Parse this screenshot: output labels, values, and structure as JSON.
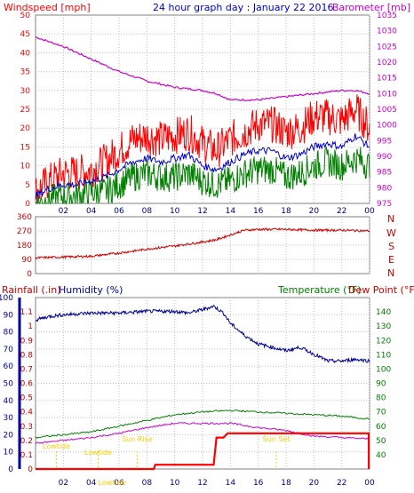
{
  "header": {
    "left_label": "Windspeed [mph]",
    "title": "24 hour graph day : January 22 2016",
    "right_label": "Barometer [mb]"
  },
  "panel2": {
    "direction_labels": [
      "N",
      "W",
      "S",
      "E",
      "N"
    ]
  },
  "panel3": {
    "rain_label": "Rainfall (.in)",
    "humidity_label": "Humidity (%)",
    "temp_label": "Temperature (°F)",
    "dew_label": "Dew Point (°F)"
  },
  "colors": {
    "wind": "#ff0000",
    "baro": "#cc00cc",
    "gust": "#ff0000",
    "avg": "#0000cc",
    "low": "#008000",
    "direction": "#cc0000",
    "humidity": "#000099",
    "temperature": "#008000",
    "dewpoint": "#cc00cc",
    "rain": "#ff0000",
    "events": "#ffcc00"
  },
  "chart_data": [
    {
      "type": "line",
      "name": "wind-and-barometer",
      "xlabels": [
        "02",
        "04",
        "06",
        "08",
        "10",
        "12",
        "14",
        "16",
        "18",
        "20",
        "22",
        "00"
      ],
      "xlim": [
        0,
        24
      ],
      "ylim_left": [
        0,
        50
      ],
      "yticks_left": [
        "0",
        "5",
        "10",
        "15",
        "20",
        "25",
        "30",
        "35",
        "40",
        "45",
        "50"
      ],
      "ylim_right": [
        975,
        1035
      ],
      "yticks_right": [
        "975",
        "980",
        "985",
        "990",
        "995",
        "1000",
        "1005",
        "1010",
        "1015",
        "1020",
        "1025",
        "1030",
        "1035"
      ],
      "series": [
        {
          "key": "gust",
          "axis": "left",
          "x": [
            0,
            1,
            2,
            3,
            4,
            5,
            6,
            7,
            8,
            9,
            10,
            11,
            12,
            13,
            14,
            15,
            16,
            17,
            18,
            19,
            20,
            21,
            22,
            23,
            24
          ],
          "y": [
            3,
            6,
            8,
            8,
            9,
            11,
            14,
            17,
            18,
            17,
            18,
            19,
            16,
            14,
            17,
            19,
            21,
            21,
            19,
            20,
            23,
            23,
            22,
            25,
            20
          ]
        },
        {
          "key": "avg",
          "axis": "left",
          "x": [
            0,
            1,
            2,
            3,
            4,
            5,
            6,
            7,
            8,
            9,
            10,
            11,
            12,
            13,
            14,
            15,
            16,
            17,
            18,
            19,
            20,
            21,
            22,
            23,
            24
          ],
          "y": [
            2,
            4,
            5,
            5,
            6,
            7,
            9,
            11,
            12,
            11,
            12,
            13,
            10,
            9,
            11,
            13,
            14,
            14,
            12,
            13,
            15,
            16,
            15,
            18,
            15
          ]
        },
        {
          "key": "low",
          "axis": "left",
          "x": [
            0,
            1,
            2,
            3,
            4,
            5,
            6,
            7,
            8,
            9,
            10,
            11,
            12,
            13,
            14,
            15,
            16,
            17,
            18,
            19,
            20,
            21,
            22,
            23,
            24
          ],
          "y": [
            0,
            1,
            2,
            2,
            3,
            3,
            5,
            7,
            8,
            7,
            7,
            8,
            6,
            5,
            6,
            8,
            9,
            9,
            7,
            8,
            10,
            11,
            10,
            12,
            10
          ]
        },
        {
          "key": "baro",
          "axis": "right",
          "x": [
            0,
            2,
            4,
            6,
            8,
            10,
            12,
            13,
            14,
            16,
            18,
            20,
            22,
            23,
            24
          ],
          "y": [
            1028,
            1025,
            1021,
            1017,
            1014,
            1012,
            1011,
            1010,
            1008,
            1008,
            1009,
            1010,
            1011,
            1011,
            1010
          ]
        }
      ]
    },
    {
      "type": "line",
      "name": "wind-direction",
      "xlabels": [
        "02",
        "04",
        "06",
        "08",
        "10",
        "12",
        "14",
        "16",
        "18",
        "20",
        "22",
        "00"
      ],
      "xlim": [
        0,
        24
      ],
      "ylim": [
        0,
        360
      ],
      "yticks": [
        "0",
        "90",
        "180",
        "270",
        "360"
      ],
      "series": [
        {
          "key": "direction",
          "x": [
            0,
            2,
            4,
            6,
            8,
            10,
            12,
            13,
            14,
            15,
            16,
            18,
            20,
            22,
            24
          ],
          "y": [
            100,
            105,
            110,
            130,
            155,
            175,
            200,
            215,
            245,
            275,
            280,
            280,
            275,
            275,
            270
          ]
        }
      ]
    },
    {
      "type": "line",
      "name": "rain-humidity-temperature",
      "xlabels": [
        "02",
        "04",
        "06",
        "08",
        "10",
        "12",
        "14",
        "16",
        "18",
        "20",
        "22",
        "00"
      ],
      "xlim": [
        0,
        24
      ],
      "ylim_humidity": [
        0,
        100
      ],
      "yticks_humidity": [
        "0",
        "10",
        "20",
        "30",
        "40",
        "50",
        "60",
        "70",
        "80",
        "90",
        "100"
      ],
      "ylim_rain": [
        0,
        1.2
      ],
      "yticks_rain": [
        "0",
        "0.1",
        "0.2",
        "0.3",
        "0.4",
        "0.5",
        "0.6",
        "0.7",
        "0.8",
        "0.9",
        "1",
        "1.1"
      ],
      "ylim_temp": [
        30,
        150
      ],
      "yticks_temp": [
        "40",
        "50",
        "60",
        "70",
        "80",
        "90",
        "100",
        "110",
        "120",
        "130",
        "140"
      ],
      "events": [
        {
          "label": "Lowtide",
          "x": 1.5
        },
        {
          "label": "Lowtide",
          "x": 4.5
        },
        {
          "label": "Sun Rise",
          "x": 7.3
        },
        {
          "label": "Sun Set",
          "x": 17.3
        }
      ],
      "series": [
        {
          "key": "humidity",
          "axis": "humidity",
          "x": [
            0,
            1,
            2,
            4,
            6,
            8,
            10,
            11,
            12,
            12.8,
            13.5,
            14,
            15,
            16,
            17,
            18,
            19,
            20,
            21,
            22,
            23,
            24
          ],
          "y": [
            87,
            89,
            90,
            91,
            91,
            92,
            92,
            91,
            93,
            95,
            91,
            85,
            78,
            73,
            71,
            69,
            71,
            67,
            63,
            63,
            64,
            63
          ]
        },
        {
          "key": "temperature",
          "axis": "temp",
          "x": [
            0,
            2,
            4,
            6,
            8,
            10,
            12,
            14,
            16,
            18,
            20,
            22,
            24
          ],
          "y": [
            52,
            54,
            56,
            60,
            64,
            68,
            70,
            71,
            70,
            69,
            68,
            67,
            65
          ]
        },
        {
          "key": "dewpoint",
          "axis": "temp",
          "x": [
            0,
            2,
            4,
            6,
            8,
            10,
            12,
            14,
            16,
            18,
            20,
            22,
            24
          ],
          "y": [
            48,
            50,
            52,
            55,
            59,
            62,
            62,
            62,
            59,
            57,
            53,
            52,
            51
          ]
        },
        {
          "key": "rain",
          "axis": "rain",
          "x": [
            0,
            8.5,
            8.6,
            12.8,
            13,
            13.5,
            13.8,
            24
          ],
          "y": [
            0,
            0,
            0.03,
            0.03,
            0.22,
            0.22,
            0.25,
            0.25
          ]
        }
      ]
    }
  ]
}
